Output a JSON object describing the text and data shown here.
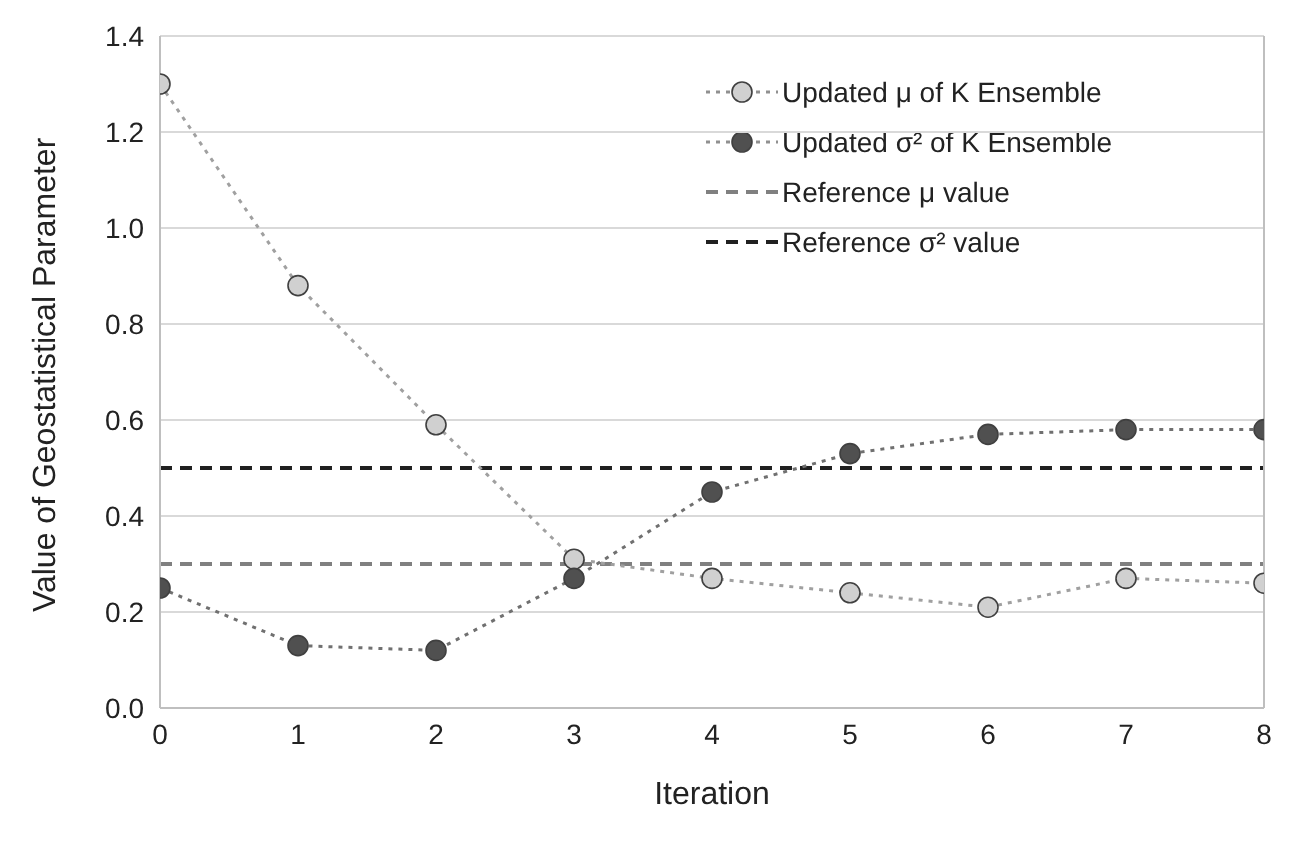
{
  "chart_data": {
    "type": "line",
    "xlabel": "Iteration",
    "ylabel": "Value of Geostatistical Parameter",
    "x": [
      0,
      1,
      2,
      3,
      4,
      5,
      6,
      7,
      8
    ],
    "series": [
      {
        "name": "Updated μ of K Ensemble",
        "color": "#d0d0d0",
        "values": [
          1.3,
          0.88,
          0.59,
          0.31,
          0.27,
          0.24,
          0.21,
          0.27,
          0.26
        ]
      },
      {
        "name": "Updated σ² of K Ensemble",
        "color": "#505050",
        "values": [
          0.25,
          0.13,
          0.12,
          0.27,
          0.45,
          0.53,
          0.57,
          0.58,
          0.58
        ]
      }
    ],
    "ref_lines": [
      {
        "axis": "y",
        "value": 0.3,
        "label": "Reference μ value",
        "color": "#808080",
        "line_style": "dashed"
      },
      {
        "axis": "y",
        "value": 0.5,
        "label": "Reference σ² value",
        "color": "#202020",
        "line_style": "dashed"
      }
    ],
    "xlim": [
      0,
      8
    ],
    "xticks": [
      0,
      1,
      2,
      3,
      4,
      5,
      6,
      7,
      8
    ],
    "ylim": [
      0,
      1.4
    ],
    "yticks": [
      {
        "value": 0,
        "label": "0.0"
      },
      0.2,
      0.4,
      0.6,
      0.8,
      {
        "value": 1,
        "label": "1.0"
      },
      1.2,
      1.4
    ],
    "grid": "y",
    "legend": "top right",
    "marker": "circle",
    "line_style": "dotted"
  }
}
